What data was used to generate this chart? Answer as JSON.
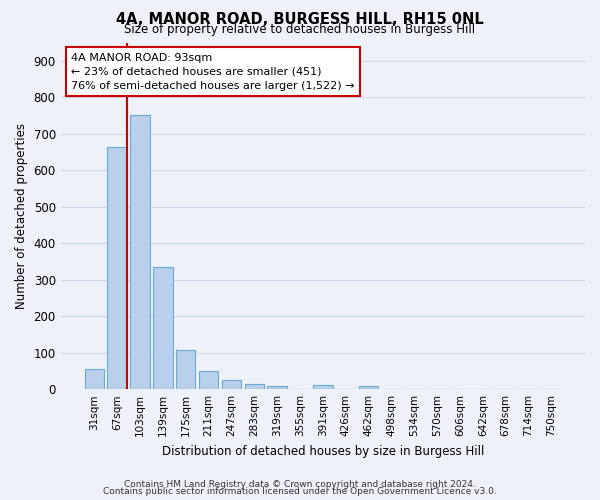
{
  "title_line1": "4A, MANOR ROAD, BURGESS HILL, RH15 0NL",
  "title_line2": "Size of property relative to detached houses in Burgess Hill",
  "xlabel": "Distribution of detached houses by size in Burgess Hill",
  "ylabel": "Number of detached properties",
  "categories": [
    "31sqm",
    "67sqm",
    "103sqm",
    "139sqm",
    "175sqm",
    "211sqm",
    "247sqm",
    "283sqm",
    "319sqm",
    "355sqm",
    "391sqm",
    "426sqm",
    "462sqm",
    "498sqm",
    "534sqm",
    "570sqm",
    "606sqm",
    "642sqm",
    "678sqm",
    "714sqm",
    "750sqm"
  ],
  "values": [
    55,
    665,
    750,
    335,
    108,
    50,
    25,
    15,
    10,
    0,
    12,
    0,
    10,
    0,
    0,
    0,
    0,
    0,
    0,
    0,
    0
  ],
  "bar_color": "#b8d0ea",
  "bar_edge_color": "#6aaad4",
  "annotation_text_line1": "4A MANOR ROAD: 93sqm",
  "annotation_text_line2": "← 23% of detached houses are smaller (451)",
  "annotation_text_line3": "76% of semi-detached houses are larger (1,522) →",
  "ylim": [
    0,
    950
  ],
  "yticks": [
    0,
    100,
    200,
    300,
    400,
    500,
    600,
    700,
    800,
    900
  ],
  "footnote1": "Contains HM Land Registry data © Crown copyright and database right 2024.",
  "footnote2": "Contains public sector information licensed under the Open Government Licence v3.0.",
  "grid_color": "#ccd8e8",
  "background_color": "#eef2f8"
}
